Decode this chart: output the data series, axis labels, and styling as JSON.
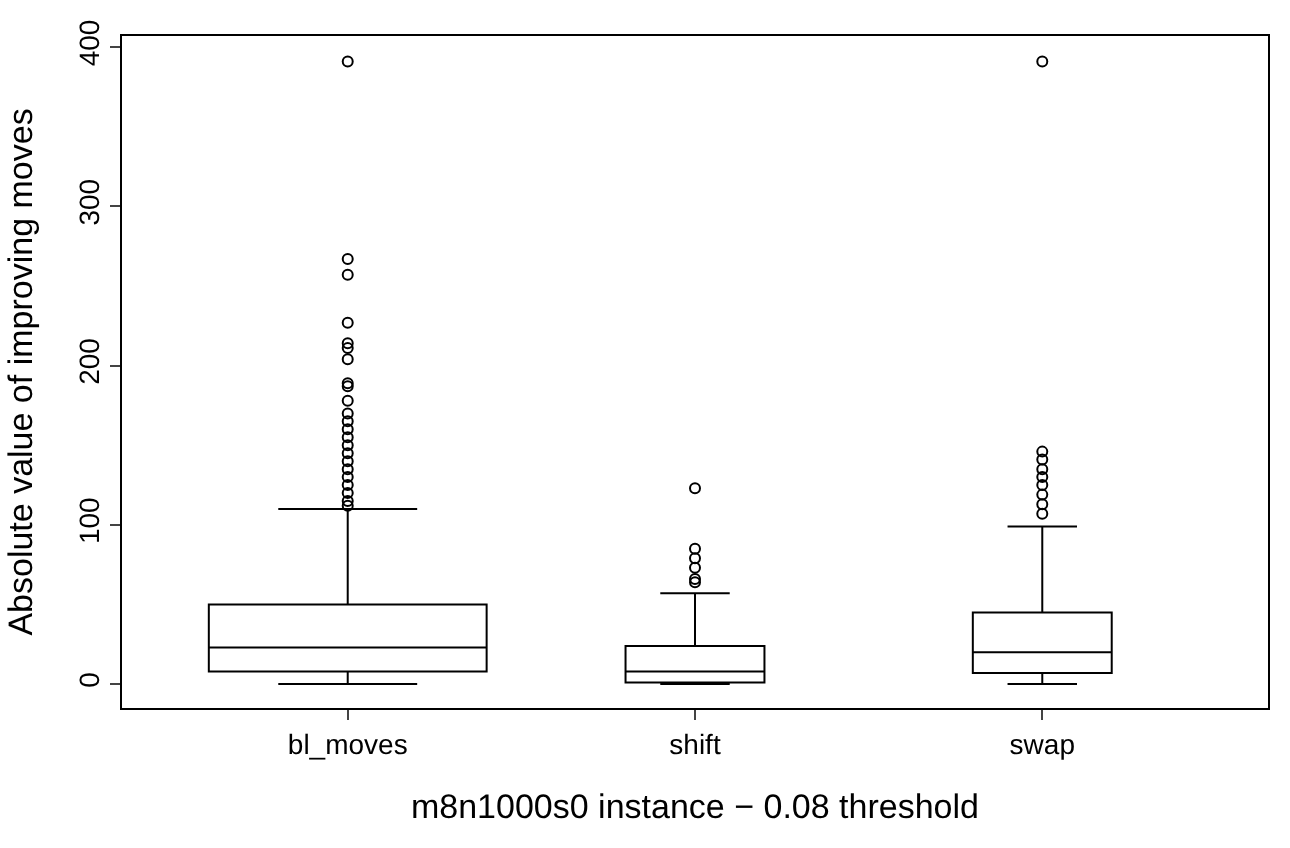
{
  "chart_data": {
    "type": "box",
    "xlabel": "m8n1000s0 instance − 0.08 threshold",
    "ylabel": "Absolute value of improving moves",
    "categories": [
      "bl_moves",
      "shift",
      "swap"
    ],
    "boxes": [
      {
        "low": 0,
        "q1": 8,
        "median": 23,
        "q3": 50,
        "high": 110,
        "outliers": [
          391,
          267,
          257,
          227,
          214,
          211,
          204,
          189,
          187,
          178,
          170,
          165,
          160,
          155,
          150,
          145,
          140,
          135,
          130,
          125,
          120,
          115,
          112
        ]
      },
      {
        "low": 0,
        "q1": 1,
        "median": 8,
        "q3": 24,
        "high": 57,
        "outliers": [
          123,
          85,
          79,
          73,
          66,
          64
        ]
      },
      {
        "low": 0,
        "q1": 7,
        "median": 20,
        "q3": 45,
        "high": 99,
        "outliers": [
          391,
          146,
          141,
          135,
          130,
          125,
          119,
          113,
          107
        ]
      }
    ],
    "color": "#000000",
    "ylim": [
      -15,
      407
    ],
    "yticks": [
      0,
      100,
      200,
      300,
      400
    ]
  }
}
